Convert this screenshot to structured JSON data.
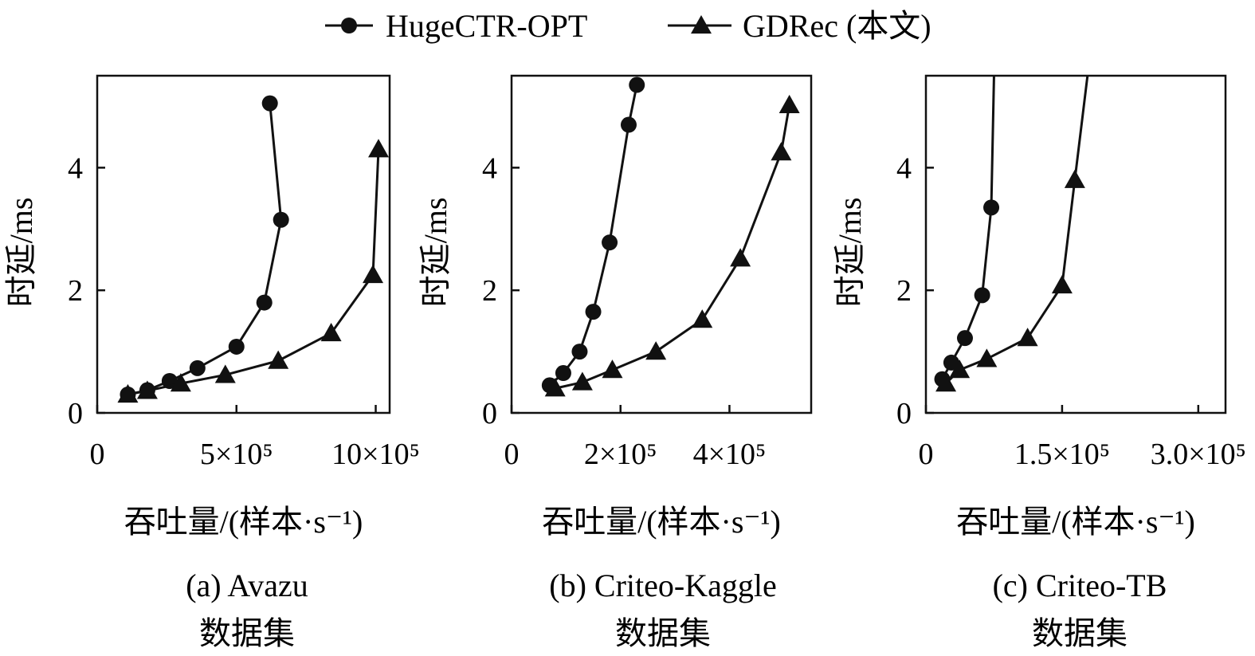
{
  "legend": {
    "series": [
      {
        "name": "HugeCTR-OPT",
        "marker": "circle-icon"
      },
      {
        "name": "GDRec (本文)",
        "marker": "triangle-icon"
      }
    ]
  },
  "colors": {
    "line": "#111111",
    "background": "#ffffff"
  },
  "chart_data": [
    {
      "type": "line",
      "caption_line1": "(a)  Avazu",
      "caption_line2": "数据集",
      "xlabel": "吞吐量/(样本·s⁻¹)",
      "ylabel": "时延/ms",
      "xlim": [
        0,
        1050000
      ],
      "ylim": [
        0,
        5.5
      ],
      "xticks": [
        0,
        500000,
        1000000
      ],
      "xtick_labels": [
        "0",
        "5×10⁵",
        "10×10⁵"
      ],
      "yticks": [
        0,
        2,
        4
      ],
      "ytick_labels": [
        "0",
        "2",
        "4"
      ],
      "series": [
        {
          "name": "HugeCTR-OPT",
          "marker": "circle",
          "x": [
            110000,
            180000,
            260000,
            360000,
            500000,
            600000,
            660000,
            620000
          ],
          "y": [
            0.3,
            0.37,
            0.52,
            0.73,
            1.08,
            1.8,
            3.15,
            5.05
          ]
        },
        {
          "name": "GDRec (本文)",
          "marker": "triangle",
          "x": [
            110000,
            180000,
            300000,
            460000,
            650000,
            840000,
            990000,
            1010000
          ],
          "y": [
            0.3,
            0.36,
            0.48,
            0.62,
            0.85,
            1.3,
            2.25,
            4.3
          ]
        }
      ]
    },
    {
      "type": "line",
      "caption_line1": "(b)  Criteo-Kaggle",
      "caption_line2": "数据集",
      "xlabel": "吞吐量/(样本·s⁻¹)",
      "ylabel": "时延/ms",
      "xlim": [
        0,
        550000
      ],
      "ylim": [
        0,
        5.5
      ],
      "xticks": [
        0,
        200000,
        400000
      ],
      "xtick_labels": [
        "0",
        "2×10⁵",
        "4×10⁵"
      ],
      "yticks": [
        0,
        2,
        4
      ],
      "ytick_labels": [
        "0",
        "2",
        "4"
      ],
      "series": [
        {
          "name": "HugeCTR-OPT",
          "marker": "circle",
          "x": [
            70000,
            95000,
            125000,
            150000,
            180000,
            215000,
            230000
          ],
          "y": [
            0.45,
            0.65,
            1.0,
            1.65,
            2.78,
            4.7,
            5.35
          ]
        },
        {
          "name": "GDRec (本文)",
          "marker": "triangle",
          "x": [
            80000,
            130000,
            185000,
            265000,
            350000,
            420000,
            495000,
            510000
          ],
          "y": [
            0.4,
            0.5,
            0.7,
            1.0,
            1.52,
            2.52,
            4.25,
            5.02
          ]
        }
      ]
    },
    {
      "type": "line",
      "caption_line1": "(c)  Criteo-TB",
      "caption_line2": "数据集",
      "xlabel": "吞吐量/(样本·s⁻¹)",
      "ylabel": "时延/ms",
      "xlim": [
        0,
        330000
      ],
      "ylim": [
        0,
        5.5
      ],
      "xticks": [
        0,
        150000,
        300000
      ],
      "xtick_labels": [
        "0",
        "1.5×10⁵",
        "3.0×10⁵"
      ],
      "yticks": [
        0,
        2,
        4
      ],
      "ytick_labels": [
        "0",
        "2",
        "4"
      ],
      "series": [
        {
          "name": "HugeCTR-OPT",
          "marker": "circle",
          "x": [
            18000,
            28000,
            43000,
            62000,
            72000,
            75000
          ],
          "y": [
            0.55,
            0.82,
            1.22,
            1.92,
            3.35,
            5.5
          ]
        },
        {
          "name": "GDRec (本文)",
          "marker": "triangle",
          "x": [
            22000,
            37000,
            67000,
            112000,
            150000,
            164000,
            178000
          ],
          "y": [
            0.48,
            0.7,
            0.88,
            1.22,
            2.08,
            3.8,
            5.5
          ]
        }
      ]
    }
  ]
}
